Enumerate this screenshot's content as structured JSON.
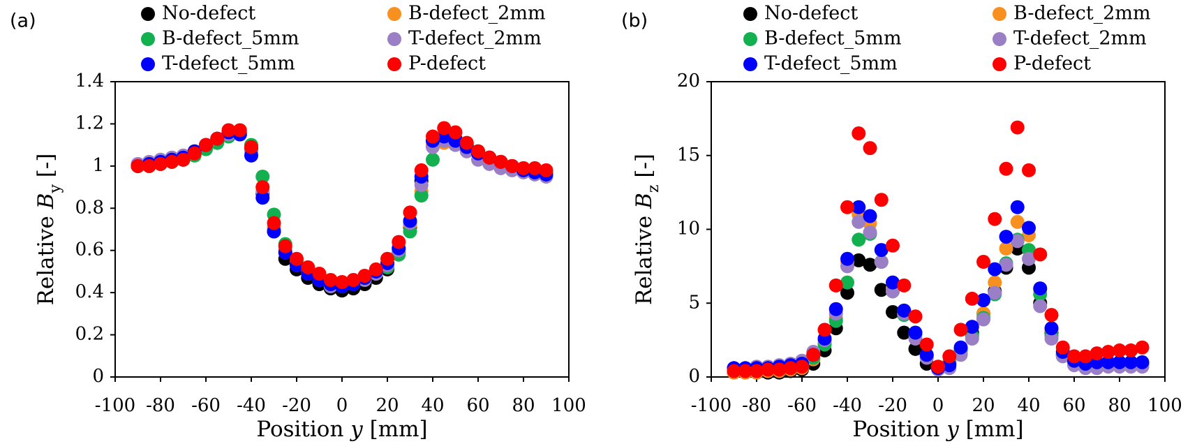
{
  "chart_data": [
    {
      "type": "scatter",
      "panel_label": "(a)",
      "x_label": [
        "Position ",
        "y",
        " [mm]"
      ],
      "y_label": [
        "Relative ",
        "B",
        "y",
        " [-]"
      ],
      "xlim": [
        -100,
        100
      ],
      "xticks": [
        -100,
        -80,
        -60,
        -40,
        -20,
        0,
        20,
        40,
        60,
        80,
        100
      ],
      "ylim": [
        0,
        1.4
      ],
      "yticks": [
        0,
        0.2,
        0.4,
        0.6,
        0.8,
        1,
        1.2,
        1.4
      ],
      "x": [
        -90,
        -85,
        -80,
        -75,
        -70,
        -65,
        -60,
        -55,
        -50,
        -45,
        -40,
        -35,
        -30,
        -25,
        -20,
        -15,
        -10,
        -5,
        0,
        5,
        10,
        15,
        20,
        25,
        30,
        35,
        40,
        45,
        50,
        55,
        60,
        65,
        70,
        75,
        80,
        85,
        90
      ],
      "series": [
        {
          "name": "No-defect",
          "color": "#000000",
          "values": [
            1.0,
            1.005,
            1.01,
            1.02,
            1.03,
            1.06,
            1.09,
            1.12,
            1.16,
            1.15,
            1.08,
            0.87,
            0.69,
            0.56,
            0.51,
            0.47,
            0.44,
            0.42,
            0.41,
            0.42,
            0.44,
            0.47,
            0.51,
            0.59,
            0.71,
            0.93,
            1.12,
            1.14,
            1.13,
            1.1,
            1.07,
            1.04,
            1.02,
            1.0,
            0.98,
            0.97,
            0.97
          ]
        },
        {
          "name": "B-defect_2mm",
          "color": "#f7901e",
          "values": [
            1.0,
            1.01,
            1.01,
            1.02,
            1.04,
            1.06,
            1.09,
            1.12,
            1.15,
            1.16,
            1.09,
            0.9,
            0.71,
            0.59,
            0.53,
            0.49,
            0.46,
            0.44,
            0.43,
            0.45,
            0.47,
            0.5,
            0.54,
            0.61,
            0.72,
            0.88,
            1.1,
            1.11,
            1.12,
            1.09,
            1.06,
            1.04,
            1.02,
            1.0,
            0.99,
            0.98,
            0.97
          ]
        },
        {
          "name": "B-defect_5mm",
          "color": "#12b04f",
          "values": [
            1.0,
            1.0,
            1.01,
            1.02,
            1.03,
            1.05,
            1.08,
            1.11,
            1.14,
            1.16,
            1.1,
            0.95,
            0.77,
            0.63,
            0.55,
            0.5,
            0.47,
            0.44,
            0.43,
            0.44,
            0.46,
            0.49,
            0.52,
            0.58,
            0.69,
            0.86,
            1.03,
            1.14,
            1.12,
            1.1,
            1.06,
            1.04,
            1.01,
            1.0,
            0.98,
            0.97,
            0.96
          ]
        },
        {
          "name": "T-defect_2mm",
          "color": "#9b7fc6",
          "values": [
            1.01,
            1.02,
            1.03,
            1.04,
            1.05,
            1.07,
            1.1,
            1.13,
            1.15,
            1.15,
            1.07,
            0.88,
            0.7,
            0.6,
            0.53,
            0.49,
            0.46,
            0.43,
            0.43,
            0.44,
            0.46,
            0.49,
            0.53,
            0.6,
            0.73,
            0.91,
            1.09,
            1.12,
            1.1,
            1.07,
            1.03,
            1.01,
            0.99,
            0.98,
            0.97,
            0.96,
            0.95
          ]
        },
        {
          "name": "T-defect_5mm",
          "color": "#0000ff",
          "values": [
            1.0,
            1.01,
            1.02,
            1.03,
            1.04,
            1.07,
            1.1,
            1.13,
            1.16,
            1.15,
            1.05,
            0.85,
            0.69,
            0.59,
            0.53,
            0.49,
            0.46,
            0.44,
            0.43,
            0.44,
            0.47,
            0.5,
            0.54,
            0.61,
            0.74,
            0.95,
            1.12,
            1.14,
            1.12,
            1.09,
            1.06,
            1.04,
            1.02,
            1.0,
            0.98,
            0.97,
            0.96
          ]
        },
        {
          "name": "P-defect",
          "color": "#ff0000",
          "values": [
            1.0,
            1.0,
            1.01,
            1.02,
            1.03,
            1.06,
            1.1,
            1.13,
            1.17,
            1.17,
            1.09,
            0.9,
            0.73,
            0.62,
            0.56,
            0.52,
            0.49,
            0.46,
            0.45,
            0.46,
            0.48,
            0.51,
            0.56,
            0.64,
            0.78,
            0.98,
            1.14,
            1.18,
            1.16,
            1.11,
            1.07,
            1.04,
            1.02,
            1.0,
            0.99,
            0.99,
            0.98
          ]
        }
      ]
    },
    {
      "type": "scatter",
      "panel_label": "(b)",
      "x_label": [
        "Position ",
        "y",
        " [mm]"
      ],
      "y_label": [
        "Relative ",
        "B",
        "z",
        " [-]"
      ],
      "xlim": [
        -100,
        100
      ],
      "xticks": [
        -100,
        -80,
        -60,
        -40,
        -20,
        0,
        20,
        40,
        60,
        80,
        100
      ],
      "ylim": [
        0,
        20
      ],
      "yticks": [
        0,
        5,
        10,
        15,
        20
      ],
      "x": [
        -90,
        -85,
        -80,
        -75,
        -70,
        -65,
        -60,
        -55,
        -50,
        -45,
        -40,
        -35,
        -30,
        -25,
        -20,
        -15,
        -10,
        -5,
        0,
        5,
        10,
        15,
        20,
        25,
        30,
        35,
        40,
        45,
        50,
        55,
        60,
        65,
        70,
        75,
        80,
        85,
        90
      ],
      "series": [
        {
          "name": "No-defect",
          "color": "#000000",
          "values": [
            0.3,
            0.3,
            0.3,
            0.3,
            0.3,
            0.4,
            0.5,
            0.9,
            1.8,
            3.3,
            5.7,
            7.9,
            7.6,
            5.9,
            4.4,
            3.0,
            1.9,
            0.9,
            0.6,
            0.9,
            1.9,
            3.0,
            4.3,
            5.8,
            7.4,
            8.7,
            7.4,
            5.0,
            3.0,
            1.5,
            1.0,
            0.9,
            0.9,
            0.9,
            0.9,
            0.9,
            0.9
          ]
        },
        {
          "name": "B-defect_2mm",
          "color": "#f7901e",
          "values": [
            0.3,
            0.3,
            0.3,
            0.4,
            0.4,
            0.5,
            0.6,
            1.2,
            2.3,
            4.0,
            7.8,
            11.0,
            10.4,
            7.8,
            6.0,
            4.5,
            3.0,
            1.5,
            0.7,
            1.0,
            1.6,
            2.7,
            4.3,
            6.4,
            8.7,
            10.5,
            9.6,
            5.9,
            3.2,
            1.5,
            1.0,
            0.8,
            0.8,
            0.8,
            0.8,
            0.8,
            0.8
          ]
        },
        {
          "name": "B-defect_5mm",
          "color": "#12b04f",
          "values": [
            0.4,
            0.4,
            0.4,
            0.5,
            0.5,
            0.6,
            0.7,
            1.3,
            2.2,
            3.8,
            6.4,
            9.3,
            9.7,
            7.8,
            5.8,
            4.2,
            2.9,
            1.4,
            0.6,
            1.0,
            1.8,
            2.8,
            4.0,
            5.6,
            7.7,
            9.3,
            8.6,
            5.6,
            2.8,
            1.5,
            0.9,
            0.8,
            0.9,
            0.9,
            0.9,
            0.9,
            0.9
          ]
        },
        {
          "name": "T-defect_2mm",
          "color": "#9b7fc6",
          "values": [
            0.6,
            0.6,
            0.7,
            0.7,
            0.8,
            0.9,
            1.1,
            1.7,
            2.5,
            4.3,
            7.5,
            10.5,
            9.8,
            7.8,
            5.8,
            4.3,
            2.6,
            1.3,
            0.5,
            0.6,
            1.5,
            2.6,
            3.9,
            5.7,
            7.6,
            9.2,
            8.0,
            4.8,
            2.6,
            1.4,
            0.8,
            0.6,
            0.6,
            0.7,
            0.7,
            0.7,
            0.7
          ]
        },
        {
          "name": "T-defect_5mm",
          "color": "#0000ff",
          "values": [
            0.6,
            0.6,
            0.6,
            0.6,
            0.7,
            0.8,
            0.9,
            1.5,
            2.6,
            4.6,
            8.0,
            11.5,
            10.9,
            8.6,
            6.4,
            4.5,
            3.0,
            1.5,
            0.6,
            0.8,
            2.0,
            3.4,
            5.2,
            7.3,
            9.5,
            11.5,
            10.1,
            6.0,
            3.3,
            1.7,
            1.1,
            0.9,
            1.0,
            1.0,
            1.0,
            1.0,
            1.0
          ]
        },
        {
          "name": "P-defect",
          "color": "#ff0000",
          "values": [
            0.4,
            0.4,
            0.4,
            0.5,
            0.5,
            0.6,
            0.7,
            1.5,
            3.2,
            6.2,
            11.5,
            16.5,
            15.5,
            12.0,
            8.9,
            6.2,
            4.1,
            2.2,
            0.7,
            1.4,
            3.2,
            5.3,
            7.8,
            10.7,
            14.1,
            16.9,
            14.0,
            8.3,
            4.2,
            2.0,
            1.4,
            1.4,
            1.6,
            1.7,
            1.8,
            1.8,
            2.0
          ]
        }
      ]
    }
  ]
}
